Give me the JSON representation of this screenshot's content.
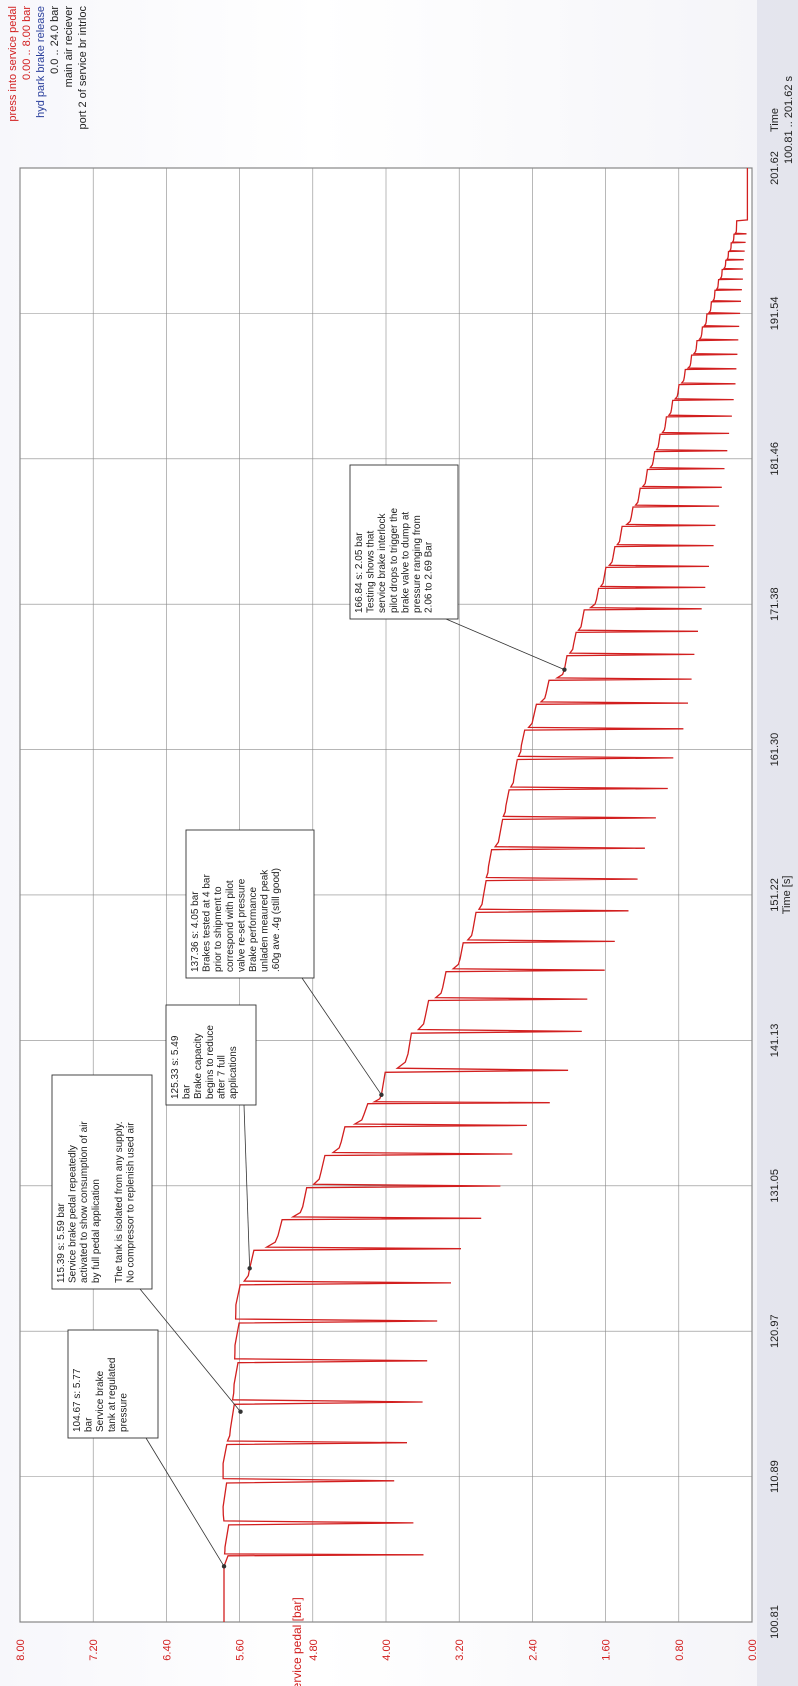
{
  "legend": {
    "items": [
      {
        "label": "press into service pedal",
        "color": "#d21f1f"
      },
      {
        "label": "0.00 .. 8.00 bar",
        "color": "#d21f1f"
      },
      {
        "label": "hyd park brake release",
        "color": "#2a3f9c"
      },
      {
        "label": "0.0 .. 24.0 bar",
        "color": "#222222"
      },
      {
        "label": "main air reciever",
        "color": "#222222"
      },
      {
        "label": "port 2 of service br intrloc",
        "color": "#222222"
      }
    ],
    "time_label": "Time",
    "time_range": "100.81 .. 201.62 s"
  },
  "colors": {
    "series": "#d21f1f",
    "grid": "#8a8a8a",
    "frame": "#555555",
    "text": "#222222",
    "panel": "#d9dbe6"
  },
  "chart_data": {
    "type": "line",
    "xlabel": "Time [s]",
    "ylabel": "press into service pedal [bar]",
    "xlim": [
      100.81,
      201.62
    ],
    "ylim": [
      0,
      8
    ],
    "x_ticks": [
      "100.81",
      "110.89",
      "120.97",
      "131.05",
      "141.13",
      "151.22",
      "161.30",
      "171.38",
      "181.46",
      "191.54",
      "201.62"
    ],
    "y_ticks": [
      "0.00",
      "0.80",
      "1.60",
      "2.40",
      "3.20",
      "4.00",
      "4.80",
      "5.60",
      "6.40",
      "7.20",
      "8.00"
    ],
    "grid": true,
    "series": [
      {
        "name": "press into service pedal",
        "cycles": [
          {
            "t": 104.67,
            "p": 5.77,
            "dip": 3.59
          },
          {
            "t": 106.0,
            "p": 5.76,
            "dip": 3.7
          },
          {
            "t": 108.8,
            "p": 5.78,
            "dip": 3.91
          },
          {
            "t": 111.8,
            "p": 5.78,
            "dip": 3.77
          },
          {
            "t": 114.2,
            "p": 5.7,
            "dip": 3.6
          },
          {
            "t": 117.3,
            "p": 5.66,
            "dip": 3.55
          },
          {
            "t": 120.0,
            "p": 5.65,
            "dip": 3.44
          },
          {
            "t": 122.8,
            "p": 5.64,
            "dip": 3.29
          },
          {
            "t": 125.33,
            "p": 5.49,
            "dip": 3.18
          },
          {
            "t": 127.6,
            "p": 5.18,
            "dip": 2.96
          },
          {
            "t": 129.6,
            "p": 4.91,
            "dip": 2.75
          },
          {
            "t": 132.0,
            "p": 4.71,
            "dip": 2.62
          },
          {
            "t": 134.1,
            "p": 4.49,
            "dip": 2.46
          },
          {
            "t": 136.0,
            "p": 4.24,
            "dip": 2.21
          },
          {
            "t": 137.36,
            "p": 4.05,
            "dip": 2.01
          },
          {
            "t": 140.2,
            "p": 3.76,
            "dip": 1.86
          },
          {
            "t": 142.8,
            "p": 3.57,
            "dip": 1.8
          },
          {
            "t": 144.8,
            "p": 3.38,
            "dip": 1.61
          },
          {
            "t": 146.8,
            "p": 3.19,
            "dip": 1.5
          },
          {
            "t": 148.8,
            "p": 3.05,
            "dip": 1.35
          },
          {
            "t": 151.0,
            "p": 2.94,
            "dip": 1.25
          },
          {
            "t": 153.2,
            "p": 2.88,
            "dip": 1.17
          },
          {
            "t": 155.3,
            "p": 2.76,
            "dip": 1.05
          },
          {
            "t": 157.4,
            "p": 2.69,
            "dip": 0.92
          },
          {
            "t": 159.4,
            "p": 2.6,
            "dip": 0.86
          },
          {
            "t": 161.6,
            "p": 2.52,
            "dip": 0.75
          },
          {
            "t": 163.5,
            "p": 2.39,
            "dip": 0.7
          },
          {
            "t": 165.2,
            "p": 2.25,
            "dip": 0.66
          },
          {
            "t": 166.84,
            "p": 2.05,
            "dip": 0.63
          },
          {
            "t": 168.6,
            "p": 1.95,
            "dip": 0.59
          },
          {
            "t": 170.1,
            "p": 1.86,
            "dip": 0.55
          },
          {
            "t": 171.7,
            "p": 1.7,
            "dip": 0.51
          },
          {
            "t": 173.1,
            "p": 1.62,
            "dip": 0.47
          },
          {
            "t": 174.6,
            "p": 1.52,
            "dip": 0.42
          },
          {
            "t": 176.0,
            "p": 1.44,
            "dip": 0.4
          },
          {
            "t": 177.4,
            "p": 1.32,
            "dip": 0.36
          },
          {
            "t": 178.7,
            "p": 1.24,
            "dip": 0.33
          },
          {
            "t": 180.0,
            "p": 1.16,
            "dip": 0.3
          },
          {
            "t": 181.3,
            "p": 1.08,
            "dip": 0.27
          },
          {
            "t": 182.5,
            "p": 1.02,
            "dip": 0.25
          },
          {
            "t": 183.7,
            "p": 0.95,
            "dip": 0.22
          },
          {
            "t": 184.9,
            "p": 0.88,
            "dip": 0.2
          },
          {
            "t": 186.0,
            "p": 0.81,
            "dip": 0.18
          },
          {
            "t": 187.1,
            "p": 0.74,
            "dip": 0.17
          },
          {
            "t": 188.1,
            "p": 0.67,
            "dip": 0.16
          },
          {
            "t": 189.1,
            "p": 0.61,
            "dip": 0.15
          },
          {
            "t": 190.1,
            "p": 0.55,
            "dip": 0.14
          },
          {
            "t": 191.0,
            "p": 0.5,
            "dip": 0.13
          },
          {
            "t": 191.9,
            "p": 0.45,
            "dip": 0.12
          },
          {
            "t": 192.7,
            "p": 0.41,
            "dip": 0.11
          },
          {
            "t": 193.5,
            "p": 0.37,
            "dip": 0.1
          },
          {
            "t": 194.2,
            "p": 0.33,
            "dip": 0.1
          },
          {
            "t": 194.9,
            "p": 0.29,
            "dip": 0.09
          },
          {
            "t": 195.5,
            "p": 0.26,
            "dip": 0.08
          },
          {
            "t": 196.1,
            "p": 0.23,
            "dip": 0.07
          },
          {
            "t": 196.7,
            "p": 0.2,
            "dip": 0.06
          },
          {
            "t": 197.3,
            "p": 0.17,
            "dip": 0.05
          }
        ],
        "start_value": 5.77,
        "end_value": 0.05
      }
    ],
    "annotations": [
      {
        "anchor": {
          "x": 104.67,
          "y": 5.77
        },
        "lines": [
          "104.67 s: 5.77",
          "bar",
          "Service brake",
          "tank at regulated",
          "pressure"
        ]
      },
      {
        "anchor": {
          "x": 115.39,
          "y": 5.59
        },
        "lines": [
          "115.39 s: 5.59 bar",
          "Service brake pedal repeatedly",
          "activated to show consumption of air",
          "by full pedal application",
          "",
          "The tank is isolated from any supply.",
          "No compressor to replenish used air"
        ]
      },
      {
        "anchor": {
          "x": 125.33,
          "y": 5.49
        },
        "lines": [
          "125.33 s: 5.49",
          "bar",
          "Brake capacity",
          "begins to reduce",
          "after 7 full",
          "applications"
        ]
      },
      {
        "anchor": {
          "x": 137.36,
          "y": 4.05
        },
        "lines": [
          "137.36 s: 4.05 bar",
          "Brakes tested at 4 bar",
          "prior to shipment to",
          "correspond with pilot",
          "valve re-set pressure",
          "Brake performance",
          "unladen meaured peak",
          ".60g ave .4g (still good)"
        ]
      },
      {
        "anchor": {
          "x": 166.84,
          "y": 2.05
        },
        "lines": [
          "166.84 s: 2.05 bar",
          "Testing shows that",
          "service brake interlock",
          "pilot drops to trigger the",
          "brake valve to dump at",
          "pressure ranging from",
          "2.06 to 2.69 Bar"
        ]
      }
    ]
  }
}
